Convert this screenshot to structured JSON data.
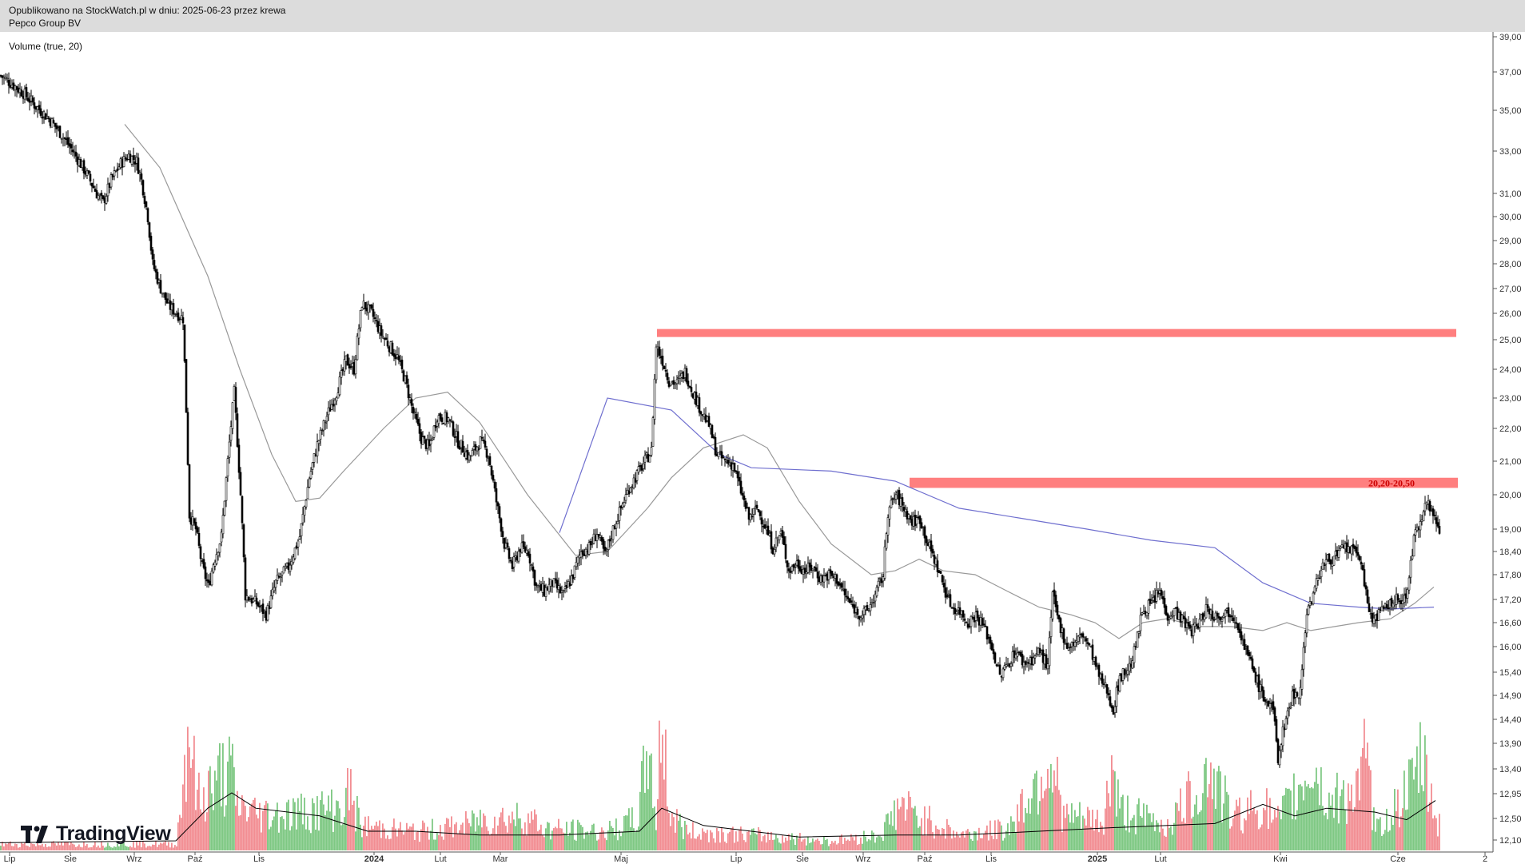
{
  "header": {
    "published": "Opublikowano na StockWatch.pl w dniu: 2025-06-23 przez krewa",
    "symbol": "Pepco Group BV"
  },
  "indicator_label": "Volume (true, 20)",
  "logo_text": "TradingView",
  "chart_data": {
    "type": "candlestick",
    "title": "Pepco Group BV",
    "y_scale": "log",
    "y_ticks": [
      "39,00",
      "37,00",
      "35,00",
      "33,00",
      "31,00",
      "30,00",
      "29,00",
      "28,00",
      "27,00",
      "26,00",
      "25,00",
      "24,00",
      "23,00",
      "22,00",
      "21,00",
      "20,00",
      "19,00",
      "18,40",
      "17,80",
      "17,20",
      "16,60",
      "16,00",
      "15,40",
      "14,90",
      "14,40",
      "13,90",
      "13,40",
      "12,95",
      "12,50",
      "12,10"
    ],
    "x_ticks": [
      "Lip",
      "Sie",
      "Wrz",
      "Paź",
      "Lis",
      "2024",
      "Lut",
      "Mar",
      "Maj",
      "Lip",
      "Sie",
      "Wrz",
      "Paź",
      "Lis",
      "2025",
      "Lut",
      "Kwi",
      "Cze",
      "2"
    ],
    "bold_x_ticks": [
      "2024",
      "2025"
    ],
    "price_path": [
      [
        0,
        36.8
      ],
      [
        8,
        36.3
      ],
      [
        14,
        35.9
      ],
      [
        22,
        35.2
      ],
      [
        30,
        34.6
      ],
      [
        38,
        33.8
      ],
      [
        45,
        33.0
      ],
      [
        53,
        32.0
      ],
      [
        60,
        31.0
      ],
      [
        64,
        30.6
      ],
      [
        69,
        31.6
      ],
      [
        75,
        32.4
      ],
      [
        80,
        32.8
      ],
      [
        85,
        32.5
      ],
      [
        88,
        31.6
      ],
      [
        92,
        30.0
      ],
      [
        95,
        28.0
      ],
      [
        100,
        27.0
      ],
      [
        105,
        26.3
      ],
      [
        110,
        26.0
      ],
      [
        114,
        25.8
      ],
      [
        118,
        19.4
      ],
      [
        122,
        19.0
      ],
      [
        126,
        18.0
      ],
      [
        130,
        17.5
      ],
      [
        133,
        18.1
      ],
      [
        138,
        18.8
      ],
      [
        142,
        21.0
      ],
      [
        146,
        23.2
      ],
      [
        150,
        20.0
      ],
      [
        153,
        17.3
      ],
      [
        160,
        17.1
      ],
      [
        166,
        16.8
      ],
      [
        172,
        17.6
      ],
      [
        180,
        18.0
      ],
      [
        187,
        18.8
      ],
      [
        193,
        20.5
      ],
      [
        198,
        21.5
      ],
      [
        204,
        22.4
      ],
      [
        210,
        23.2
      ],
      [
        216,
        24.3
      ],
      [
        221,
        24.0
      ],
      [
        226,
        26.4
      ],
      [
        232,
        26.0
      ],
      [
        238,
        25.2
      ],
      [
        243,
        24.8
      ],
      [
        248,
        24.4
      ],
      [
        253,
        23.6
      ],
      [
        258,
        22.5
      ],
      [
        263,
        21.7
      ],
      [
        268,
        21.4
      ],
      [
        273,
        22.4
      ],
      [
        280,
        22.3
      ],
      [
        286,
        21.6
      ],
      [
        293,
        21.1
      ],
      [
        300,
        21.6
      ],
      [
        305,
        21.2
      ],
      [
        310,
        19.8
      ],
      [
        315,
        18.6
      ],
      [
        320,
        18.0
      ],
      [
        325,
        18.5
      ],
      [
        330,
        18.4
      ],
      [
        335,
        17.5
      ],
      [
        340,
        17.4
      ],
      [
        345,
        17.6
      ],
      [
        352,
        17.3
      ],
      [
        358,
        17.8
      ],
      [
        363,
        18.4
      ],
      [
        368,
        18.5
      ],
      [
        373,
        18.9
      ],
      [
        378,
        18.3
      ],
      [
        383,
        19.0
      ],
      [
        388,
        19.6
      ],
      [
        393,
        20.2
      ],
      [
        398,
        20.6
      ],
      [
        403,
        21.0
      ],
      [
        407,
        21.3
      ],
      [
        410,
        24.8
      ],
      [
        414,
        24.3
      ],
      [
        418,
        23.6
      ],
      [
        423,
        23.5
      ],
      [
        428,
        23.9
      ],
      [
        433,
        23.2
      ],
      [
        438,
        22.6
      ],
      [
        443,
        22.1
      ],
      [
        448,
        21.2
      ],
      [
        453,
        21.0
      ],
      [
        458,
        20.9
      ],
      [
        463,
        20.1
      ],
      [
        468,
        19.3
      ],
      [
        473,
        19.6
      ],
      [
        478,
        19.1
      ],
      [
        483,
        18.5
      ],
      [
        488,
        18.9
      ],
      [
        493,
        17.9
      ],
      [
        498,
        18.1
      ],
      [
        503,
        17.9
      ],
      [
        508,
        18.0
      ],
      [
        513,
        17.7
      ],
      [
        518,
        17.8
      ],
      [
        523,
        17.7
      ],
      [
        528,
        17.3
      ],
      [
        533,
        17.0
      ],
      [
        538,
        16.8
      ],
      [
        542,
        16.9
      ],
      [
        547,
        17.3
      ],
      [
        552,
        17.8
      ],
      [
        555,
        19.5
      ],
      [
        560,
        20.0
      ],
      [
        565,
        19.6
      ],
      [
        570,
        19.2
      ],
      [
        575,
        19.3
      ],
      [
        580,
        18.6
      ],
      [
        585,
        18.1
      ],
      [
        590,
        17.5
      ],
      [
        595,
        17.0
      ],
      [
        600,
        16.9
      ],
      [
        605,
        16.6
      ],
      [
        610,
        16.8
      ],
      [
        615,
        16.5
      ],
      [
        620,
        16.0
      ],
      [
        625,
        15.3
      ],
      [
        630,
        15.6
      ],
      [
        635,
        15.9
      ],
      [
        640,
        15.6
      ],
      [
        645,
        15.7
      ],
      [
        650,
        15.9
      ],
      [
        655,
        15.5
      ],
      [
        658,
        17.3
      ],
      [
        662,
        16.6
      ],
      [
        667,
        16.0
      ],
      [
        672,
        16.1
      ],
      [
        677,
        16.3
      ],
      [
        682,
        15.9
      ],
      [
        687,
        15.3
      ],
      [
        692,
        15.0
      ],
      [
        696,
        14.6
      ],
      [
        700,
        15.3
      ],
      [
        706,
        15.5
      ],
      [
        710,
        16.0
      ],
      [
        714,
        16.9
      ],
      [
        720,
        17.1
      ],
      [
        725,
        17.4
      ],
      [
        730,
        16.8
      ],
      [
        735,
        16.9
      ],
      [
        740,
        16.6
      ],
      [
        745,
        16.4
      ],
      [
        750,
        16.6
      ],
      [
        754,
        17.0
      ],
      [
        758,
        16.8
      ],
      [
        763,
        16.8
      ],
      [
        768,
        16.9
      ],
      [
        773,
        16.7
      ],
      [
        778,
        16.0
      ],
      [
        783,
        15.5
      ],
      [
        788,
        15.0
      ],
      [
        793,
        14.7
      ],
      [
        796,
        14.6
      ],
      [
        799,
        13.6
      ],
      [
        803,
        14.3
      ],
      [
        808,
        14.9
      ],
      [
        813,
        15.0
      ],
      [
        817,
        16.9
      ],
      [
        821,
        17.3
      ],
      [
        826,
        18.0
      ],
      [
        831,
        18.2
      ],
      [
        836,
        18.3
      ],
      [
        841,
        18.5
      ],
      [
        846,
        18.4
      ],
      [
        851,
        18.2
      ],
      [
        854,
        17.3
      ],
      [
        857,
        16.7
      ],
      [
        862,
        16.8
      ],
      [
        867,
        17.0
      ],
      [
        872,
        17.2
      ],
      [
        877,
        17.1
      ],
      [
        880,
        17.5
      ],
      [
        884,
        18.7
      ],
      [
        888,
        19.2
      ],
      [
        891,
        19.9
      ],
      [
        895,
        19.5
      ],
      [
        900,
        19.0
      ]
    ],
    "ma_blue": [
      [
        350,
        18.9
      ],
      [
        380,
        23.0
      ],
      [
        420,
        22.6
      ],
      [
        450,
        21.2
      ],
      [
        470,
        20.8
      ],
      [
        520,
        20.7
      ],
      [
        560,
        20.4
      ],
      [
        600,
        19.6
      ],
      [
        640,
        19.3
      ],
      [
        680,
        19.0
      ],
      [
        720,
        18.7
      ],
      [
        760,
        18.5
      ],
      [
        790,
        17.6
      ],
      [
        820,
        17.1
      ],
      [
        850,
        17.0
      ],
      [
        870,
        16.95
      ],
      [
        897,
        17.0
      ]
    ],
    "ma_gray": [
      [
        78,
        34.3
      ],
      [
        100,
        32.2
      ],
      [
        130,
        27.5
      ],
      [
        150,
        24.0
      ],
      [
        170,
        21.2
      ],
      [
        185,
        19.8
      ],
      [
        200,
        19.9
      ],
      [
        215,
        20.7
      ],
      [
        240,
        22.0
      ],
      [
        260,
        23.0
      ],
      [
        280,
        23.2
      ],
      [
        300,
        22.2
      ],
      [
        330,
        20.0
      ],
      [
        360,
        18.3
      ],
      [
        380,
        18.4
      ],
      [
        405,
        19.6
      ],
      [
        420,
        20.5
      ],
      [
        440,
        21.4
      ],
      [
        465,
        21.8
      ],
      [
        480,
        21.4
      ],
      [
        500,
        19.8
      ],
      [
        520,
        18.6
      ],
      [
        545,
        17.8
      ],
      [
        560,
        17.9
      ],
      [
        575,
        18.2
      ],
      [
        590,
        17.9
      ],
      [
        610,
        17.8
      ],
      [
        630,
        17.4
      ],
      [
        650,
        17.0
      ],
      [
        670,
        16.8
      ],
      [
        685,
        16.6
      ],
      [
        700,
        16.2
      ],
      [
        715,
        16.6
      ],
      [
        730,
        16.7
      ],
      [
        750,
        16.5
      ],
      [
        770,
        16.5
      ],
      [
        790,
        16.4
      ],
      [
        805,
        16.6
      ],
      [
        820,
        16.4
      ],
      [
        835,
        16.5
      ],
      [
        850,
        16.6
      ],
      [
        870,
        16.7
      ],
      [
        885,
        17.1
      ],
      [
        897,
        17.5
      ]
    ],
    "volume_bars": [
      [
        0,
        0.04
      ],
      [
        110,
        0.04
      ],
      [
        118,
        0.85
      ],
      [
        122,
        0.38
      ],
      [
        126,
        0.3
      ],
      [
        130,
        0.44
      ],
      [
        134,
        0.36
      ],
      [
        138,
        0.55
      ],
      [
        141,
        0.4
      ],
      [
        144,
        0.56
      ],
      [
        147,
        0.3
      ],
      [
        160,
        0.24
      ],
      [
        180,
        0.24
      ],
      [
        200,
        0.26
      ],
      [
        215,
        0.28
      ],
      [
        218,
        0.4
      ],
      [
        225,
        0.16
      ],
      [
        260,
        0.12
      ],
      [
        290,
        0.16
      ],
      [
        300,
        0.2
      ],
      [
        330,
        0.22
      ],
      [
        340,
        0.14
      ],
      [
        380,
        0.12
      ],
      [
        398,
        0.2
      ],
      [
        406,
        0.7
      ],
      [
        410,
        0.16
      ],
      [
        414,
        1.0
      ],
      [
        418,
        0.24
      ],
      [
        430,
        0.12
      ],
      [
        470,
        0.1
      ],
      [
        520,
        0.06
      ],
      [
        550,
        0.1
      ],
      [
        563,
        0.3
      ],
      [
        570,
        0.24
      ],
      [
        600,
        0.1
      ],
      [
        630,
        0.14
      ],
      [
        657,
        0.6
      ],
      [
        665,
        0.22
      ],
      [
        690,
        0.18
      ],
      [
        695,
        0.55
      ],
      [
        700,
        0.26
      ],
      [
        730,
        0.16
      ],
      [
        757,
        0.52
      ],
      [
        770,
        0.22
      ],
      [
        790,
        0.3
      ],
      [
        798,
        0.18
      ],
      [
        814,
        0.42
      ],
      [
        820,
        0.56
      ],
      [
        830,
        0.3
      ],
      [
        851,
        0.42
      ],
      [
        854,
        0.62
      ],
      [
        860,
        0.12
      ],
      [
        880,
        0.38
      ],
      [
        884,
        0.42
      ],
      [
        888,
        0.6
      ],
      [
        893,
        0.44
      ],
      [
        898,
        0.2
      ]
    ],
    "volume_ma": [
      [
        0,
        0.04
      ],
      [
        110,
        0.05
      ],
      [
        130,
        0.22
      ],
      [
        145,
        0.3
      ],
      [
        160,
        0.22
      ],
      [
        200,
        0.18
      ],
      [
        230,
        0.1
      ],
      [
        260,
        0.1
      ],
      [
        300,
        0.08
      ],
      [
        350,
        0.08
      ],
      [
        400,
        0.1
      ],
      [
        414,
        0.22
      ],
      [
        440,
        0.13
      ],
      [
        500,
        0.07
      ],
      [
        560,
        0.08
      ],
      [
        600,
        0.08
      ],
      [
        650,
        0.1
      ],
      [
        700,
        0.12
      ],
      [
        760,
        0.14
      ],
      [
        790,
        0.24
      ],
      [
        810,
        0.18
      ],
      [
        830,
        0.22
      ],
      [
        860,
        0.2
      ],
      [
        880,
        0.16
      ],
      [
        898,
        0.26
      ]
    ],
    "resistance_zones": [
      {
        "from": 410,
        "to": 910,
        "low": 25.1,
        "high": 25.4,
        "label": ""
      },
      {
        "from": 568,
        "to": 911,
        "low": 20.2,
        "high": 20.5,
        "label": "20,20-20,50"
      }
    ],
    "colors": {
      "up": "#000000",
      "down": "#000000",
      "ma_blue": "#6f6fcf",
      "ma_gray": "#999999",
      "vol_up": "#7ec883",
      "vol_down": "#f28d92",
      "zone": "#ff7f7f",
      "zone_label": "#cc0000"
    }
  }
}
